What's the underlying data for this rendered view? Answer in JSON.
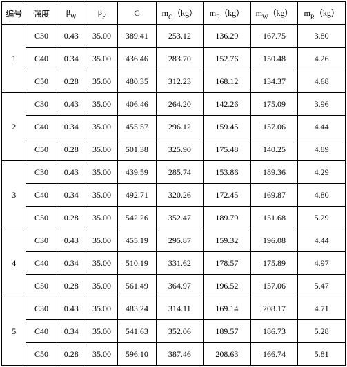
{
  "table": {
    "headers": {
      "col0": "编号",
      "col1": "强度",
      "col2_main": "β",
      "col2_sub": "W",
      "col3_main": "β",
      "col3_sub": "F",
      "col4": "C",
      "col5_main": "m",
      "col5_sub": "C",
      "col5_unit": "（kg）",
      "col6_main": "m",
      "col6_sub": "F",
      "col6_unit": "（kg）",
      "col7_main": "m",
      "col7_sub": "W",
      "col7_unit": "（kg）",
      "col8_main": "m",
      "col8_sub": "R",
      "col8_unit": "（kg）"
    },
    "groups": [
      {
        "id": "1",
        "rows": [
          {
            "strength": "C30",
            "bw": "0.43",
            "bf": "35.00",
            "c": "389.41",
            "mc": "253.12",
            "mf": "136.29",
            "mw": "167.75",
            "mr": "3.80"
          },
          {
            "strength": "C40",
            "bw": "0.34",
            "bf": "35.00",
            "c": "436.46",
            "mc": "283.70",
            "mf": "152.76",
            "mw": "150.48",
            "mr": "4.26"
          },
          {
            "strength": "C50",
            "bw": "0.28",
            "bf": "35.00",
            "c": "480.35",
            "mc": "312.23",
            "mf": "168.12",
            "mw": "134.37",
            "mr": "4.68"
          }
        ]
      },
      {
        "id": "2",
        "rows": [
          {
            "strength": "C30",
            "bw": "0.43",
            "bf": "35.00",
            "c": "406.46",
            "mc": "264.20",
            "mf": "142.26",
            "mw": "175.09",
            "mr": "3.96"
          },
          {
            "strength": "C40",
            "bw": "0.34",
            "bf": "35.00",
            "c": "455.57",
            "mc": "296.12",
            "mf": "159.45",
            "mw": "157.06",
            "mr": "4.44"
          },
          {
            "strength": "C50",
            "bw": "0.28",
            "bf": "35.00",
            "c": "501.38",
            "mc": "325.90",
            "mf": "175.48",
            "mw": "140.25",
            "mr": "4.89"
          }
        ]
      },
      {
        "id": "3",
        "rows": [
          {
            "strength": "C30",
            "bw": "0.43",
            "bf": "35.00",
            "c": "439.59",
            "mc": "285.74",
            "mf": "153.86",
            "mw": "189.36",
            "mr": "4.29"
          },
          {
            "strength": "C40",
            "bw": "0.34",
            "bf": "35.00",
            "c": "492.71",
            "mc": "320.26",
            "mf": "172.45",
            "mw": "169.87",
            "mr": "4.80"
          },
          {
            "strength": "C50",
            "bw": "0.28",
            "bf": "35.00",
            "c": "542.26",
            "mc": "352.47",
            "mf": "189.79",
            "mw": "151.68",
            "mr": "5.29"
          }
        ]
      },
      {
        "id": "4",
        "rows": [
          {
            "strength": "C30",
            "bw": "0.43",
            "bf": "35.00",
            "c": "455.19",
            "mc": "295.87",
            "mf": "159.32",
            "mw": "196.08",
            "mr": "4.44"
          },
          {
            "strength": "C40",
            "bw": "0.34",
            "bf": "35.00",
            "c": "510.19",
            "mc": "331.62",
            "mf": "178.57",
            "mw": "175.89",
            "mr": "4.97"
          },
          {
            "strength": "C50",
            "bw": "0.28",
            "bf": "35.00",
            "c": "561.49",
            "mc": "364.97",
            "mf": "196.52",
            "mw": "157.06",
            "mr": "5.47"
          }
        ]
      },
      {
        "id": "5",
        "rows": [
          {
            "strength": "C30",
            "bw": "0.43",
            "bf": "35.00",
            "c": "483.24",
            "mc": "314.11",
            "mf": "169.14",
            "mw": "208.17",
            "mr": "4.71"
          },
          {
            "strength": "C40",
            "bw": "0.34",
            "bf": "35.00",
            "c": "541.63",
            "mc": "352.06",
            "mf": "189.57",
            "mw": "186.73",
            "mr": "5.28"
          },
          {
            "strength": "C50",
            "bw": "0.28",
            "bf": "35.00",
            "c": "596.10",
            "mc": "387.46",
            "mf": "208.63",
            "mw": "166.74",
            "mr": "5.81"
          }
        ]
      }
    ]
  }
}
